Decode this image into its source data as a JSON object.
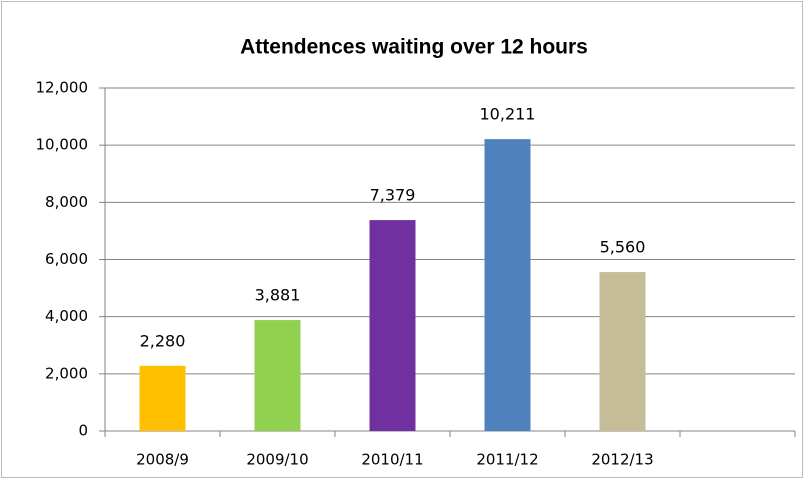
{
  "chart_data": {
    "type": "bar",
    "title": "Attendences waiting over 12 hours",
    "categories": [
      "2008/9",
      "2009/10",
      "2010/11",
      "2011/12",
      "2012/13",
      null
    ],
    "values": [
      2280,
      3881,
      7379,
      10211,
      5560,
      null
    ],
    "value_labels": [
      "2,280",
      "3,881",
      "7,379",
      "10,211",
      "5,560",
      null
    ],
    "colors": [
      "#ffc000",
      "#92d050",
      "#7030a0",
      "#4f81bd",
      "#c4bd97",
      null
    ],
    "ylim": [
      0,
      12000
    ],
    "yticks": [
      0,
      {
        "value": 2000,
        "label": "2,000"
      },
      {
        "value": 4000,
        "label": "4,000"
      },
      {
        "value": 6000,
        "label": "6,000"
      },
      {
        "value": 8000,
        "label": "8,000"
      },
      {
        "value": 10000,
        "label": "10,000"
      },
      {
        "value": 12000,
        "label": "12,000"
      }
    ],
    "grid": true
  }
}
